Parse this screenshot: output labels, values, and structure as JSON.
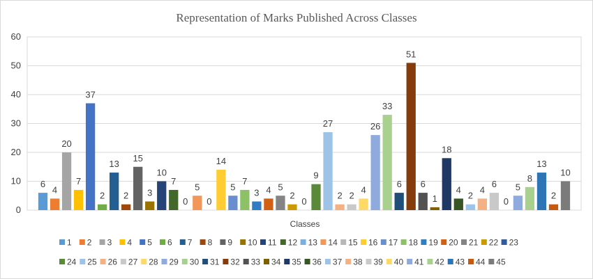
{
  "chart_data": {
    "type": "bar",
    "title": "Representation of Marks Published Across Classes",
    "xlabel": "Classes",
    "ylabel": "",
    "ylim": [
      0,
      60
    ],
    "yticks": [
      0,
      10,
      20,
      30,
      40,
      50,
      60
    ],
    "grid": true,
    "legend_position": "bottom",
    "categories": [
      "Classes"
    ],
    "series": [
      {
        "name": "1",
        "values": [
          6
        ],
        "color": "#5B9BD5"
      },
      {
        "name": "2",
        "values": [
          4
        ],
        "color": "#ED7D31"
      },
      {
        "name": "3",
        "values": [
          20
        ],
        "color": "#A5A5A5"
      },
      {
        "name": "4",
        "values": [
          7
        ],
        "color": "#FFC000"
      },
      {
        "name": "5",
        "values": [
          37
        ],
        "color": "#4472C4"
      },
      {
        "name": "6",
        "values": [
          2
        ],
        "color": "#70AD47"
      },
      {
        "name": "7",
        "values": [
          13
        ],
        "color": "#255E91"
      },
      {
        "name": "8",
        "values": [
          2
        ],
        "color": "#9E480E"
      },
      {
        "name": "9",
        "values": [
          15
        ],
        "color": "#636363"
      },
      {
        "name": "10",
        "values": [
          3
        ],
        "color": "#997300"
      },
      {
        "name": "11",
        "values": [
          10
        ],
        "color": "#264478"
      },
      {
        "name": "12",
        "values": [
          7
        ],
        "color": "#43682B"
      },
      {
        "name": "13",
        "values": [
          0
        ],
        "color": "#7CAFDD"
      },
      {
        "name": "14",
        "values": [
          5
        ],
        "color": "#F1975A"
      },
      {
        "name": "15",
        "values": [
          0
        ],
        "color": "#B7B7B7"
      },
      {
        "name": "16",
        "values": [
          14
        ],
        "color": "#FFCD33"
      },
      {
        "name": "17",
        "values": [
          5
        ],
        "color": "#698ED0"
      },
      {
        "name": "18",
        "values": [
          7
        ],
        "color": "#8CC168"
      },
      {
        "name": "19",
        "values": [
          3
        ],
        "color": "#327DC2"
      },
      {
        "name": "20",
        "values": [
          4
        ],
        "color": "#D26012"
      },
      {
        "name": "21",
        "values": [
          5
        ],
        "color": "#848484"
      },
      {
        "name": "22",
        "values": [
          2
        ],
        "color": "#CC9A00"
      },
      {
        "name": "23",
        "values": [
          0
        ],
        "color": "#335AA1"
      },
      {
        "name": "24",
        "values": [
          9
        ],
        "color": "#5A8A39"
      },
      {
        "name": "25",
        "values": [
          27
        ],
        "color": "#9DC3E6"
      },
      {
        "name": "26",
        "values": [
          2
        ],
        "color": "#F4B183"
      },
      {
        "name": "27",
        "values": [
          2
        ],
        "color": "#C9C9C9"
      },
      {
        "name": "28",
        "values": [
          4
        ],
        "color": "#FFD966"
      },
      {
        "name": "29",
        "values": [
          26
        ],
        "color": "#8FAADC"
      },
      {
        "name": "30",
        "values": [
          33
        ],
        "color": "#A9D18E"
      },
      {
        "name": "31",
        "values": [
          6
        ],
        "color": "#1F4E79"
      },
      {
        "name": "32",
        "values": [
          51
        ],
        "color": "#843C0C"
      },
      {
        "name": "33",
        "values": [
          6
        ],
        "color": "#525252"
      },
      {
        "name": "34",
        "values": [
          1
        ],
        "color": "#7F6000"
      },
      {
        "name": "35",
        "values": [
          18
        ],
        "color": "#203864"
      },
      {
        "name": "36",
        "values": [
          4
        ],
        "color": "#375623"
      },
      {
        "name": "37",
        "values": [
          2
        ],
        "color": "#9DC3E6"
      },
      {
        "name": "38",
        "values": [
          4
        ],
        "color": "#F4B183"
      },
      {
        "name": "39",
        "values": [
          6
        ],
        "color": "#C9C9C9"
      },
      {
        "name": "40",
        "values": [
          0
        ],
        "color": "#FFD966"
      },
      {
        "name": "41",
        "values": [
          5
        ],
        "color": "#8FAADC"
      },
      {
        "name": "42",
        "values": [
          8
        ],
        "color": "#A9D18E"
      },
      {
        "name": "43",
        "values": [
          13
        ],
        "color": "#2E75B6"
      },
      {
        "name": "44",
        "values": [
          2
        ],
        "color": "#C55A11"
      },
      {
        "name": "45",
        "values": [
          10
        ],
        "color": "#7B7B7B"
      }
    ]
  }
}
